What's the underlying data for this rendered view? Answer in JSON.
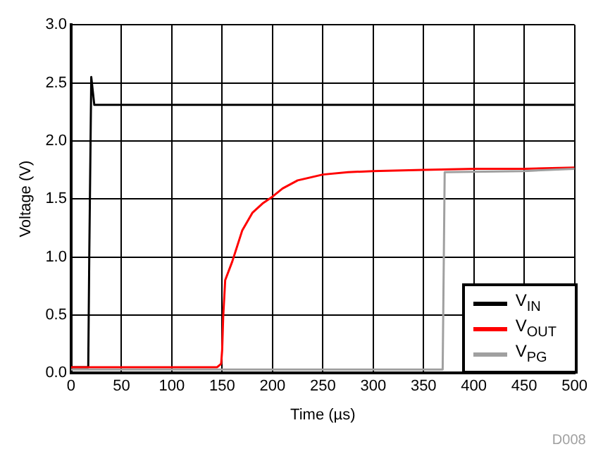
{
  "chart_data": {
    "type": "line",
    "xlabel": "Time (µs)",
    "ylabel": "Voltage (V)",
    "xlim": [
      0,
      500
    ],
    "ylim": [
      0,
      3
    ],
    "xticks": [
      0,
      50,
      100,
      150,
      200,
      250,
      300,
      350,
      400,
      450,
      500
    ],
    "yticks": [
      {
        "value": 0,
        "label": "0.0"
      },
      {
        "value": 0.5,
        "label": "0.5"
      },
      {
        "value": 1,
        "label": "1.0"
      },
      {
        "value": 1.5,
        "label": "1.5"
      },
      {
        "value": 2,
        "label": "2.0"
      },
      {
        "value": 2.5,
        "label": "2.5"
      },
      {
        "value": 3,
        "label": "3.0"
      }
    ],
    "grid": true,
    "legend": "bottom right",
    "marker": "none",
    "line_style": "solid",
    "annotations": [
      "D008"
    ],
    "series": [
      {
        "name": "V$_{IN}$",
        "color": "#000000",
        "x": [
          0,
          17,
          18,
          20,
          23,
          500
        ],
        "values": [
          0.05,
          0.05,
          1.0,
          2.55,
          2.31,
          2.31
        ]
      },
      {
        "name": "V$_{OUT}$",
        "color": "#ff0000",
        "x": [
          0,
          145,
          149,
          150,
          151,
          153,
          160,
          170,
          180,
          190,
          200,
          210,
          225,
          250,
          275,
          300,
          350,
          400,
          450,
          500
        ],
        "values": [
          0.05,
          0.05,
          0.08,
          0.2,
          0.48,
          0.8,
          0.96,
          1.23,
          1.38,
          1.46,
          1.52,
          1.59,
          1.66,
          1.71,
          1.73,
          1.74,
          1.75,
          1.76,
          1.76,
          1.77
        ]
      },
      {
        "name": "V$_{PG}$",
        "color": "#a0a0a0",
        "x": [
          0,
          369,
          370,
          371,
          450,
          500
        ],
        "values": [
          0.03,
          0.03,
          0.03,
          1.73,
          1.74,
          1.76
        ]
      }
    ]
  }
}
